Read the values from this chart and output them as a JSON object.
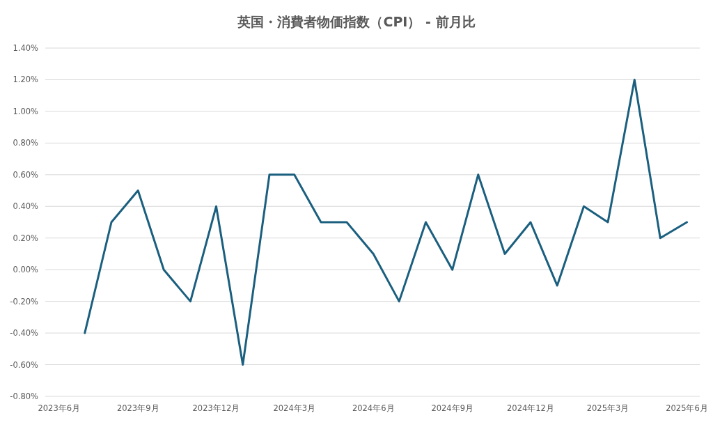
{
  "chart_data": {
    "type": "line",
    "title": "英国・消費者物価指数（CPI） - 前月比",
    "x": [
      "2023-07",
      "2023-08",
      "2023-09",
      "2023-10",
      "2023-11",
      "2023-12",
      "2024-01",
      "2024-02",
      "2024-03",
      "2024-04",
      "2024-05",
      "2024-06",
      "2024-07",
      "2024-08",
      "2024-09",
      "2024-10",
      "2024-11",
      "2024-12",
      "2025-01",
      "2025-02",
      "2025-03",
      "2025-04",
      "2025-05",
      "2025-06"
    ],
    "series": [
      {
        "color": "#1b5f7f",
        "values": [
          -0.4,
          0.3,
          0.5,
          0.0,
          -0.2,
          0.4,
          -0.6,
          0.6,
          0.6,
          0.3,
          0.3,
          0.1,
          -0.2,
          0.3,
          0.0,
          0.6,
          0.1,
          0.3,
          -0.1,
          0.4,
          0.3,
          1.2,
          0.2,
          0.3
        ]
      }
    ],
    "xlim": [
      "2023-05-16",
      "2025-06-16"
    ],
    "xticks": [
      {
        "value": "2023-06",
        "label": "2023年6月"
      },
      {
        "value": "2023-09",
        "label": "2023年9月"
      },
      {
        "value": "2023-12",
        "label": "2023年12月"
      },
      {
        "value": "2024-03",
        "label": "2024年3月"
      },
      {
        "value": "2024-06",
        "label": "2024年6月"
      },
      {
        "value": "2024-09",
        "label": "2024年9月"
      },
      {
        "value": "2024-12",
        "label": "2024年12月"
      },
      {
        "value": "2025-03",
        "label": "2025年3月"
      },
      {
        "value": "2025-06",
        "label": "2025年6月"
      }
    ],
    "ylim": [
      -0.8,
      1.4
    ],
    "yticks": [
      {
        "value": -0.8,
        "label": "-0.80%"
      },
      {
        "value": -0.6,
        "label": "-0.60%"
      },
      {
        "value": -0.4,
        "label": "-0.40%"
      },
      {
        "value": -0.2,
        "label": "-0.20%"
      },
      {
        "value": 0,
        "label": "0.00%"
      },
      {
        "value": 0.2,
        "label": "0.20%"
      },
      {
        "value": 0.4,
        "label": "0.40%"
      },
      {
        "value": 0.6,
        "label": "0.60%"
      },
      {
        "value": 0.8,
        "label": "0.80%"
      },
      {
        "value": 1.0,
        "label": "1.00%"
      },
      {
        "value": 1.2,
        "label": "1.20%"
      },
      {
        "value": 1.4,
        "label": "1.40%"
      }
    ],
    "grid": "y",
    "marker": "none",
    "line_style": "solid"
  }
}
